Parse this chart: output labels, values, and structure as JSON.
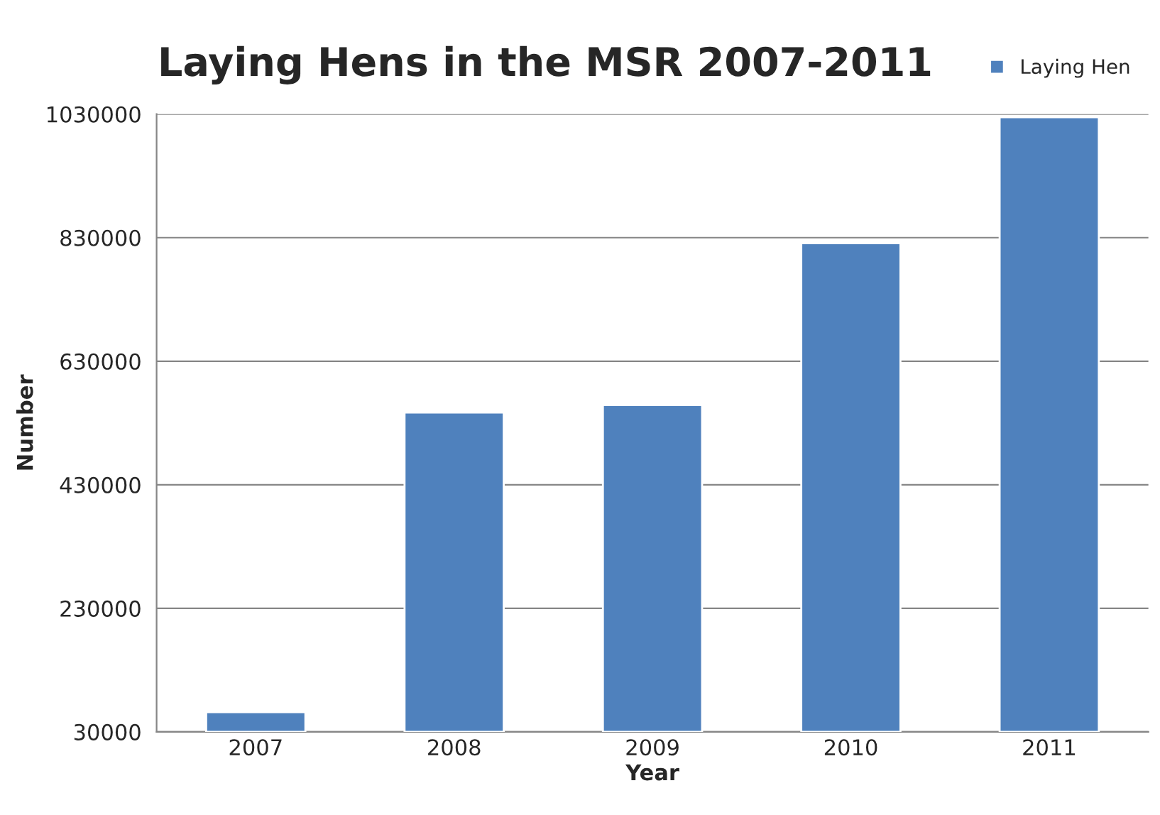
{
  "chart_data": {
    "type": "bar",
    "title": "Laying Hens in the MSR 2007-2011",
    "xlabel": "Year",
    "ylabel": "Number",
    "categories": [
      "2007",
      "2008",
      "2009",
      "2010",
      "2011"
    ],
    "series": [
      {
        "name": "Laying Hen",
        "color": "#4f81bd",
        "values": [
          62000,
          547000,
          559000,
          821000,
          1025000
        ]
      }
    ],
    "ylim": [
      30000,
      1030000
    ],
    "yticks": [
      30000,
      230000,
      430000,
      630000,
      830000,
      1030000
    ],
    "grid": "y",
    "legend": "top right"
  }
}
